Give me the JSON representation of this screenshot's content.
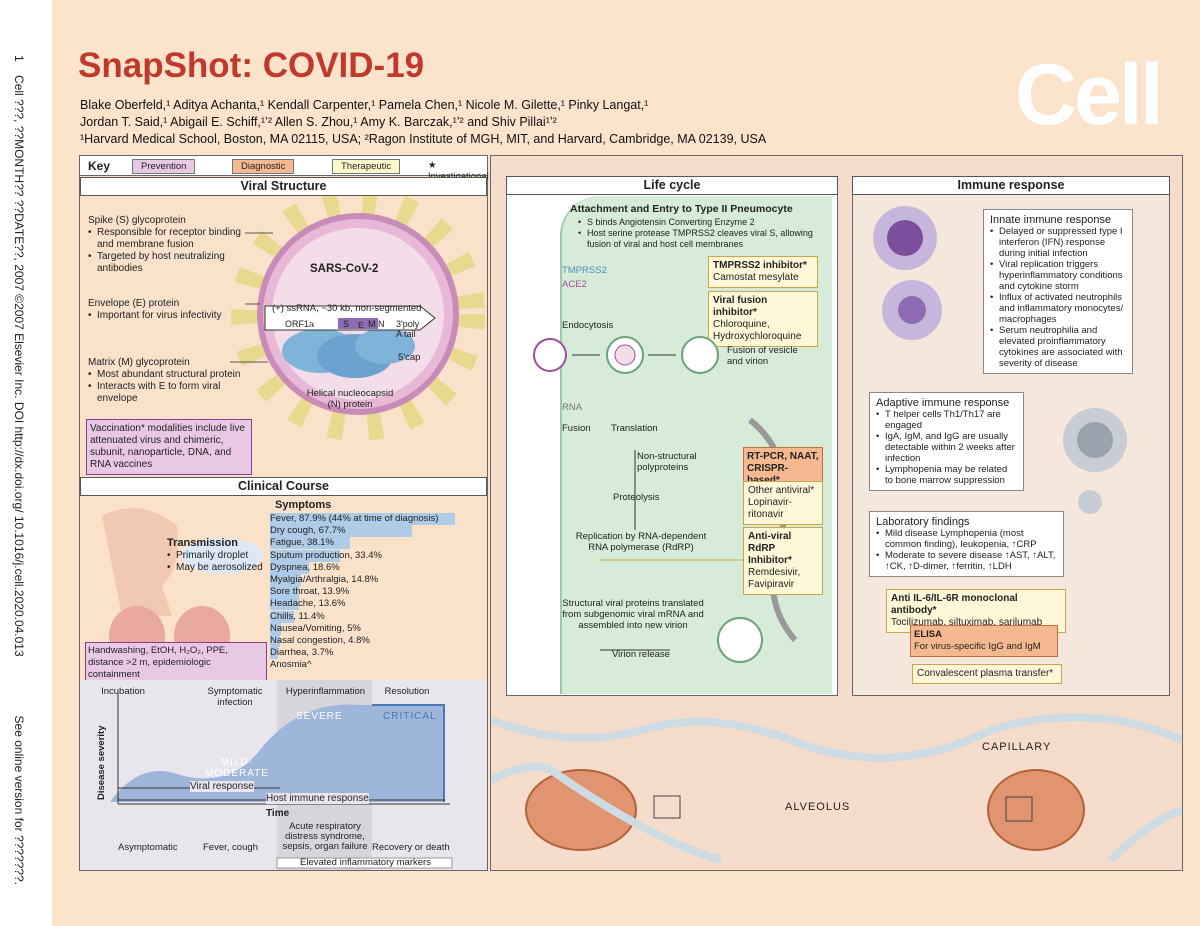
{
  "sidebar": {
    "page": "1",
    "left": "Cell ???, ??MONTH?? ??DATE??, 2007 ©2007 Elsevier Inc.   DOI http://dx.doi.org/ 10.1016/j.cell.2020.04.013",
    "right": "See online version for ???????."
  },
  "header": {
    "title": "SnapShot: COVID-19",
    "logo": "Cell",
    "authors_line1": "Blake Oberfeld,¹ Aditya Achanta,¹ Kendall Carpenter,¹ Pamela Chen,¹ Nicole M. Gilette,¹ Pinky Langat,¹",
    "authors_line2": "Jordan T. Said,¹ Abigail E. Schiff,¹ʼ² Allen S. Zhou,¹ Amy K. Barczak,¹ʼ² and Shiv Pillai¹ʼ²",
    "affiliations": "¹Harvard Medical School, Boston, MA 02115, USA; ²Ragon Institute of MGH, MIT, and Harvard, Cambridge, MA 02139, USA"
  },
  "key": {
    "label": "Key",
    "prevention": "Prevention",
    "diagnostic": "Diagnostic",
    "therapeutic": "Therapeutic",
    "investigational": "★ Investigational"
  },
  "colors": {
    "prevention": "#e9c8e6",
    "diagnostic": "#f4b990",
    "therapeutic": "#fff8c8",
    "title": "#c0392b",
    "bar": "#aecbe8",
    "curve": "#9db6da"
  },
  "viral": {
    "title": "Viral Structure",
    "spike_title": "Spike (S) glycoprotein",
    "spike_b1": "Responsible for receptor binding and membrane fusion",
    "spike_b2": "Targeted by host neutralizing antibodies",
    "env_title": "Envelope (E) protein",
    "env_b1": "Important for virus infectivity",
    "matrix_title": "Matrix (M) glycoprotein",
    "matrix_b1": "Most abundant structural protein",
    "matrix_b2": "Interacts with E to form viral envelope",
    "vaccine": "Vaccination* modalities include live attenuated virus and chimeric, subunit, nanoparticle, DNA, and RNA vaccines",
    "name": "SARS-CoV-2",
    "genome": "(+) ssRNA, ~30 kb, non-segmented",
    "orf1a": "ORF1a",
    "orf1b": "ORF1b",
    "s": "S",
    "e": "E",
    "mn": "M  N",
    "poly": "3'poly",
    "atail": "A tail",
    "cap": "5'cap",
    "nucleo": "Helical nucleocapsid (N) protein"
  },
  "clinical": {
    "title": "Clinical Course",
    "symptoms_title": "Symptoms",
    "transmission": "Transmission",
    "t1": "Primarily droplet",
    "t2": "May be aerosolized",
    "prevention_box": "Handwashing, EtOH, H₂O₂, PPE, distance >2 m, epidemiologic containment",
    "symptoms": [
      {
        "label": "Fever, 87.9% (44% at time of diagnosis)",
        "pct": 87.9
      },
      {
        "label": "Dry cough, 67.7%",
        "pct": 67.7
      },
      {
        "label": "Fatigue, 38.1%",
        "pct": 38.1
      },
      {
        "label": "Sputum production, 33.4%",
        "pct": 33.4
      },
      {
        "label": "Dyspnea, 18.6%",
        "pct": 18.6
      },
      {
        "label": "Myalgia/Arthralgia, 14.8%",
        "pct": 14.8
      },
      {
        "label": "Sore throat, 13.9%",
        "pct": 13.9
      },
      {
        "label": "Headache, 13.6%",
        "pct": 13.6
      },
      {
        "label": "Chills, 11.4%",
        "pct": 11.4
      },
      {
        "label": "Nausea/Vomiting, 5%",
        "pct": 5
      },
      {
        "label": "Nasal congestion, 4.8%",
        "pct": 4.8
      },
      {
        "label": "Diarrhea, 3.7%",
        "pct": 3.7
      },
      {
        "label": "Anosmia^",
        "pct": 0
      }
    ]
  },
  "timeline": {
    "phases": [
      "Incubation",
      "Symptomatic infection",
      "Hyperinflammation",
      "Resolution"
    ],
    "mild": "MILD-",
    "moderate": "MODERATE",
    "severe": "SEVERE",
    "critical": "CRITICAL",
    "ylabel": "Disease severity",
    "xlabel": "Time",
    "viral": "Viral response",
    "host": "Host immune response",
    "outcomes": [
      "Asymptomatic",
      "Fever, cough",
      "Acute respiratory distress syndrome, sepsis, organ failure",
      "Recovery or death"
    ],
    "markers": "Elevated inflammatory markers"
  },
  "life": {
    "title": "Life cycle",
    "entry_title": "Attachment and Entry to Type II Pneumocyte",
    "entry_b1": "S binds Angiotensin Converting Enzyme 2",
    "entry_b2": "Host serine protease TMPRSS2 cleaves viral S, allowing fusion of viral and host cell membranes",
    "tmprss2": "TMPRSS2",
    "ace2": "ACE2",
    "endocytosis": "Endocytosis",
    "fusion_vesicle": "Fusion of vesicle and virion",
    "rna": "RNA",
    "fusion": "Fusion",
    "translation": "Translation",
    "nonstruct": "Non-structural polyproteins",
    "proteolysis": "Proteolysis",
    "replication": "Replication by RNA-dependent RNA polymerase (RdRP)",
    "structural": "Structural viral proteins translated from subgenomic viral mRNA and assembled into new virion",
    "release": "Virion release",
    "tmprss2_inh_t": "TMPRSS2 inhibitor*",
    "tmprss2_inh": "Camostat mesylate",
    "fusion_inh_t": "Viral fusion inhibitor*",
    "fusion_inh": "Chloroquine, Hydroxychloroquine",
    "dx": "RT-PCR, NAAT, CRISPR-based*",
    "antiviral_t": "Other antiviral*",
    "antiviral": "Lopinavir-ritonavir",
    "rdrp_t": "Anti-viral RdRP Inhibitor*",
    "rdrp": "Remdesivir, Favipiravir"
  },
  "immune": {
    "title": "Immune response",
    "innate_t": "Innate immune response",
    "innate": [
      "Delayed or suppressed type I interferon (IFN) response during initial infection",
      "Viral replication triggers hyperinflammatory conditions and cytokine storm",
      "Influx of activated neutrophils and inflammatory monocytes/ macrophages",
      "Serum neutrophilia and elevated proinflammatory cytokines are associated with severity of disease"
    ],
    "adaptive_t": "Adaptive immune response",
    "adaptive": [
      "T helper cells Th1/Th17 are engaged",
      "IgA, IgM, and IgG are usually detectable within 2 weeks after infection",
      "Lymphopenia may be related to bone marrow suppression"
    ],
    "lab_t": "Laboratory findings",
    "lab": [
      "Mild disease Lymphopenia (most common finding), leukopenia, ↑CRP",
      "Moderate to severe disease ↑AST, ↑ALT, ↑CK, ↑D-dimer, ↑ferritin, ↑LDH"
    ],
    "antiil6_t": "Anti IL-6/IL-6R monoclonal antibody*",
    "antiil6": "Tocilizumab, siltuximab, sarilumab",
    "elisa_t": "ELISA",
    "elisa": "For virus-specific IgG and IgM",
    "plasma": "Convalescent plasma transfer*"
  },
  "bottom": {
    "alveolus": "ALVEOLUS",
    "capillary": "CAPILLARY"
  }
}
